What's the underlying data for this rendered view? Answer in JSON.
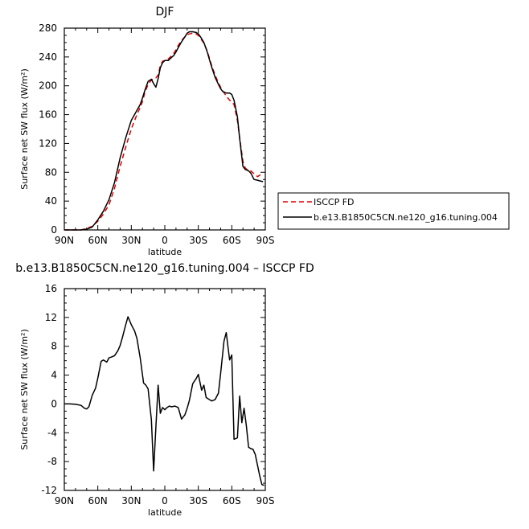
{
  "chart_data": [
    {
      "type": "line",
      "title": "DJF",
      "xlabel": "latitude",
      "ylabel": "Surface net SW flux (W/m²)",
      "xlim": [
        90,
        -90
      ],
      "ylim": [
        0,
        280
      ],
      "x_ticks": [
        {
          "v": 90,
          "label": "90N"
        },
        {
          "v": 60,
          "label": "60N"
        },
        {
          "v": 30,
          "label": "30N"
        },
        {
          "v": 0,
          "label": "0"
        },
        {
          "v": -30,
          "label": "30S"
        },
        {
          "v": -60,
          "label": "60S"
        },
        {
          "v": -90,
          "label": "90S"
        }
      ],
      "y_ticks": [
        0,
        40,
        80,
        120,
        160,
        200,
        240,
        280
      ],
      "legend_position": "outside-right",
      "series": [
        {
          "name": "ISCCP FD",
          "color": "#dd0000",
          "dash": "dashed",
          "x": [
            90,
            85,
            80,
            75,
            70,
            65,
            60,
            55,
            50,
            45,
            40,
            35,
            30,
            25,
            22,
            20,
            18,
            15,
            12,
            10,
            8,
            6,
            4,
            2,
            0,
            -3,
            -5,
            -8,
            -10,
            -12,
            -15,
            -18,
            -20,
            -22,
            -25,
            -28,
            -30,
            -32,
            -35,
            -38,
            -40,
            -42,
            -45,
            -48,
            -50,
            -52,
            -55,
            -58,
            -60,
            -62,
            -65,
            -67,
            -70,
            -72,
            -75,
            -77,
            -80,
            -83,
            -85,
            -88
          ],
          "values": [
            0,
            0,
            0,
            0,
            2,
            5,
            12,
            22,
            35,
            58,
            88,
            115,
            140,
            160,
            170,
            178,
            190,
            202,
            208,
            210,
            211,
            215,
            228,
            234,
            235,
            237,
            240,
            245,
            250,
            256,
            263,
            268,
            271,
            272,
            273,
            272,
            270,
            266,
            259,
            248,
            238,
            228,
            215,
            204,
            198,
            193,
            186,
            180,
            178,
            174,
            152,
            128,
            95,
            86,
            82,
            82,
            78,
            74,
            76,
            78
          ]
        },
        {
          "name": "b.e13.B1850C5CN.ne120_g16.tuning.004",
          "color": "#000000",
          "dash": "solid",
          "x": [
            90,
            85,
            80,
            75,
            70,
            65,
            60,
            55,
            50,
            45,
            40,
            35,
            30,
            25,
            22,
            20,
            18,
            15,
            12,
            10,
            8,
            6,
            4,
            2,
            0,
            -3,
            -5,
            -8,
            -10,
            -12,
            -15,
            -18,
            -20,
            -22,
            -25,
            -28,
            -30,
            -32,
            -35,
            -38,
            -40,
            -42,
            -45,
            -48,
            -50,
            -52,
            -55,
            -58,
            -60,
            -62,
            -65,
            -67,
            -70,
            -72,
            -75,
            -77,
            -80,
            -83,
            -85,
            -88
          ],
          "values": [
            0,
            0,
            0,
            0,
            1,
            4,
            14,
            26,
            42,
            66,
            100,
            128,
            152,
            166,
            174,
            183,
            193,
            206,
            209,
            203,
            198,
            210,
            225,
            232,
            235,
            235,
            238,
            242,
            247,
            253,
            261,
            268,
            273,
            275,
            275,
            274,
            272,
            268,
            260,
            247,
            236,
            226,
            212,
            202,
            196,
            192,
            190,
            190,
            188,
            180,
            157,
            127,
            88,
            84,
            82,
            79,
            70,
            69,
            68,
            67
          ]
        }
      ]
    },
    {
      "type": "line",
      "title": "b.e13.B1850C5CN.ne120_g16.tuning.004 – ISCCP FD",
      "xlabel": "latitude",
      "ylabel": "Surface net SW flux (W/m²)",
      "xlim": [
        90,
        -90
      ],
      "ylim": [
        -12,
        16
      ],
      "x_ticks": [
        {
          "v": 90,
          "label": "90N"
        },
        {
          "v": 60,
          "label": "60N"
        },
        {
          "v": 30,
          "label": "30N"
        },
        {
          "v": 0,
          "label": "0"
        },
        {
          "v": -30,
          "label": "30S"
        },
        {
          "v": -60,
          "label": "60S"
        },
        {
          "v": -90,
          "label": "90S"
        }
      ],
      "y_ticks": [
        -12,
        -8,
        -4,
        0,
        4,
        8,
        12,
        16
      ],
      "series": [
        {
          "name": "",
          "color": "#000000",
          "dash": "solid",
          "x": [
            90,
            85,
            80,
            75,
            72,
            70,
            68,
            65,
            62,
            60,
            57,
            55,
            52,
            50,
            48,
            45,
            42,
            40,
            38,
            35,
            33,
            30,
            27,
            25,
            22,
            19,
            17,
            15,
            12,
            10,
            8,
            6,
            4,
            2,
            0,
            -2,
            -4,
            -6,
            -9,
            -12,
            -15,
            -18,
            -20,
            -22,
            -25,
            -28,
            -30,
            -33,
            -35,
            -37,
            -40,
            -42,
            -45,
            -48,
            -50,
            -53,
            -55,
            -58,
            -60,
            -62,
            -65,
            -67,
            -69,
            -71,
            -73,
            -75,
            -77,
            -79,
            -81,
            -83,
            -85,
            -87,
            -89
          ],
          "values": [
            0,
            0,
            -0.05,
            -0.2,
            -0.6,
            -0.7,
            -0.4,
            1.2,
            2.2,
            3.6,
            5.9,
            6.1,
            5.8,
            6.4,
            6.5,
            6.7,
            7.4,
            8.1,
            9.2,
            11,
            12.1,
            11,
            10.1,
            9.1,
            6.4,
            2.9,
            2.6,
            2.1,
            -2.2,
            -9.3,
            -3.2,
            2.6,
            -1.3,
            -0.5,
            -0.8,
            -0.5,
            -0.3,
            -0.4,
            -0.3,
            -0.5,
            -2.1,
            -1.5,
            -0.6,
            0.5,
            2.8,
            3.5,
            4.1,
            1.9,
            2.6,
            0.9,
            0.6,
            0.4,
            0.6,
            1.5,
            4.2,
            8.7,
            9.9,
            6.1,
            6.8,
            -4.9,
            -4.7,
            1.1,
            -2.6,
            -0.6,
            -3,
            -6,
            -6.2,
            -6.3,
            -7,
            -8.5,
            -10,
            -11.2,
            -11.3
          ]
        }
      ]
    }
  ]
}
